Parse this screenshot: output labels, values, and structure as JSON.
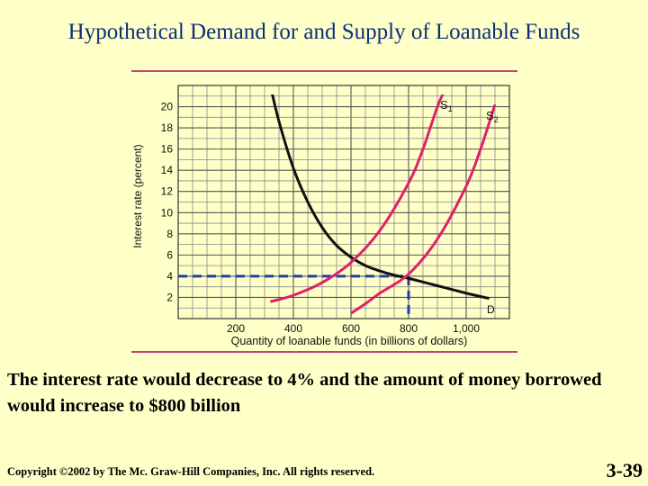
{
  "slide": {
    "title": "Hypothetical Demand for and Supply of Loanable Funds",
    "caption": "The interest rate would decrease to 4% and the amount of money borrowed would increase to $800 billion",
    "copyright": "Copyright ©2002 by The Mc. Graw-Hill Companies, Inc.  All rights reserved.",
    "slide_number": "3-39"
  },
  "colors": {
    "background": "#ffffc8",
    "title": "#0b2f7a",
    "demand": "#111111",
    "supply": "#e0206a",
    "rule": "#c8407a",
    "equilibrium": "#1f3fa8"
  },
  "chart_data": {
    "type": "line",
    "xlabel": "Quantity of loanable funds (in billions of dollars)",
    "ylabel": "Interest rate (percent)",
    "xlim": [
      0,
      1150
    ],
    "ylim": [
      0,
      22
    ],
    "x_ticks": [
      200,
      400,
      600,
      800,
      1000
    ],
    "x_tick_labels": [
      "200",
      "400",
      "600",
      "800",
      "1,000"
    ],
    "y_ticks": [
      2,
      4,
      6,
      8,
      10,
      12,
      14,
      16,
      18,
      20
    ],
    "y_tick_labels": [
      "2",
      "4",
      "6",
      "8",
      "10",
      "12",
      "14",
      "16",
      "18",
      "20"
    ],
    "grid": true,
    "series": [
      {
        "name": "D",
        "color": "#111111",
        "points": [
          [
            320,
            22
          ],
          [
            350,
            18.6
          ],
          [
            400,
            14.2
          ],
          [
            450,
            11
          ],
          [
            500,
            8.6
          ],
          [
            550,
            6.9
          ],
          [
            600,
            5.8
          ],
          [
            650,
            5
          ],
          [
            700,
            4.5
          ],
          [
            750,
            4.1
          ],
          [
            800,
            3.8
          ],
          [
            900,
            3.1
          ],
          [
            1000,
            2.4
          ],
          [
            1080,
            1.9
          ]
        ]
      },
      {
        "name": "S1",
        "color": "#e0206a",
        "points": [
          [
            320,
            1.6
          ],
          [
            400,
            2.2
          ],
          [
            500,
            3.4
          ],
          [
            600,
            5.3
          ],
          [
            700,
            8.3
          ],
          [
            800,
            12.8
          ],
          [
            850,
            16
          ],
          [
            900,
            20
          ],
          [
            930,
            21.8
          ]
        ]
      },
      {
        "name": "S2",
        "color": "#e0206a",
        "points": [
          [
            600,
            0.5
          ],
          [
            650,
            1.4
          ],
          [
            700,
            2.4
          ],
          [
            800,
            4.2
          ],
          [
            900,
            7.5
          ],
          [
            1000,
            12.5
          ],
          [
            1050,
            16
          ],
          [
            1100,
            20.2
          ]
        ]
      }
    ],
    "series_labels": [
      "S1",
      "S2",
      "D"
    ],
    "equilibrium": {
      "x": 800,
      "y": 4
    }
  }
}
